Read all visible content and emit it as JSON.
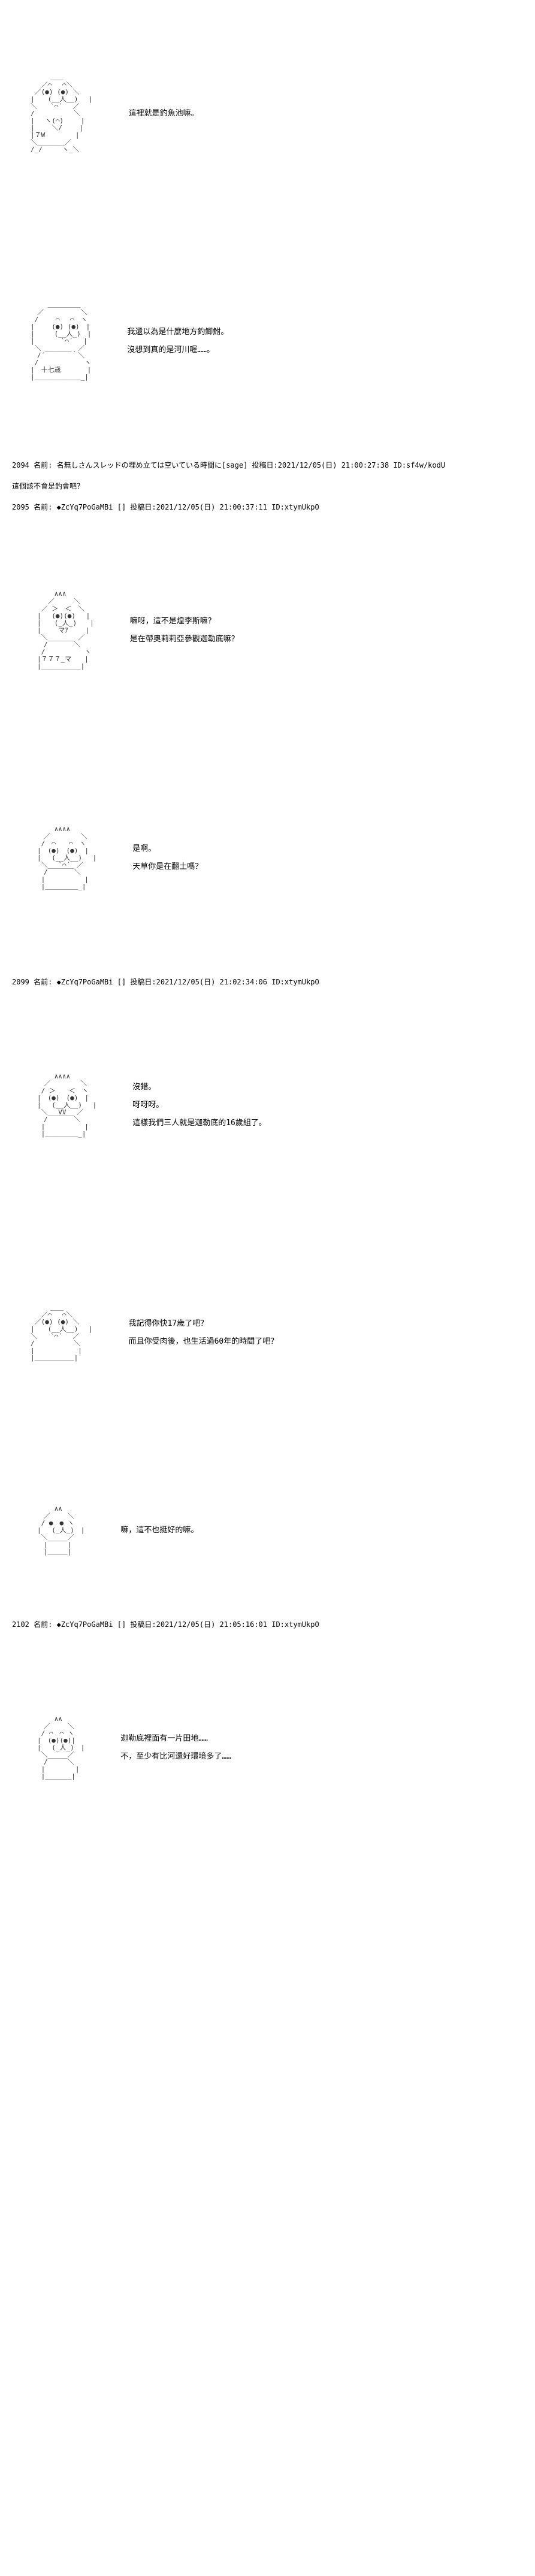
{
  "panels": [
    {
      "ascii": "　　　　＿＿\n　　 ／⌒　 ⌒＼\n　 ／(●) (●) ＼\n　|　　(__人__)　 |\n　＼　　`⌒´　 ／\n　/　　　　　　＼\n　|　 ヽ(⌒)　　 |\n　|　　 ＼/　　 |\n　|７W　　　　 |\n　＼_＿＿＿_／\n　/_/　　　ヽ_＼",
      "lines": [
        "這裡就是釣魚池嘛。"
      ],
      "height_class": ""
    },
    {
      "ascii": "　　　 ＿＿＿＿＿\n　　／　　　　　 ＼\n　 /　　 ⌒　 ⌒　ヽ\n　|　　 (●) (●)　|\n　|　　　(__人_)　|\n　|　　　　`⌒´　 |\n　 ＼　　　　　 ／\n　　/´￣￣￣￣｀＼\n　 /　　　　　　　ヽ\n　|　十七歳　　　　|\n　|＿＿＿＿＿＿＿_|",
      "lines": [
        "我還以為是什麼地方釣鯽鮒。",
        "沒想到真的是河川喔……。"
      ],
      "height_class": ""
    }
  ],
  "meta1": [
    {
      "text": "2094 名前: 名無しさんスレッドの埋め立ては空いている時間に[sage] 投稿日:2021/12/05(日) 21:00:27:38 ID:sf4w/kodU"
    },
    {
      "text": "這個該不會是釣會吧？"
    }
  ],
  "meta2": [
    {
      "text": "2095 名前: ◆ZcYq7PoGaMBi [] 投稿日:2021/12/05(日) 21:00:37:11 ID:xtymUkpO"
    }
  ],
  "panels2": [
    {
      "ascii": "　　　　 ∧∧∧\n　　　 ／　　　＼\n　　 ／ ＞　＜　＼\n　　|　 (●)(●)　 |\n　　|　　(_人_)　　|\n　　|　　 マｱ　　 |\n　　 ＼　　　　 ／\n　　　/￣￣￣￣＼\n　　 /　　　　　　ヽ\n　　|７７７_マ　　|\n　　|＿＿＿＿＿＿|",
      "lines": [
        "嘛呀，這不是煌李斯嘛？",
        "是在帶奧莉莉亞參觀迦勒底嘛？"
      ],
      "height_class": ""
    },
    {
      "ascii": "　　　　 ∧∧∧∧\n　　　／　　　　 ＼\n　　 /　⌒　　⌒　ヽ\n　　|　(●)　(●)　|\n　　|　 (__人__)　 |\n　　 ＼　 `⌒´　／\n　　　/￣￣￣￣＼\n　　 |　　　　　　|\n　　 |＿＿＿＿＿_|",
      "lines": [
        "是啊。",
        "天草你是在翻土嗎？"
      ],
      "height_class": ""
    }
  ],
  "meta3": [
    {
      "text": "2099 名前: ◆ZcYq7PoGaMBi [] 投稿日:2021/12/05(日) 21:02:34:06 ID:xtymUkpO"
    }
  ],
  "panels3": [
    {
      "ascii": "　　　　 ∧∧∧∧\n　　　／　　　　 ＼\n　　 / ＞　　＜　ヽ\n　　|　(●)　(●)　|\n　　|　 (__人__)　 |\n　　 ＼　 VV　 ／\n　　　/￣￣￣￣＼\n　　 |　　　　　　|\n　　 |＿＿＿＿＿_|",
      "lines": [
        "沒錯。",
        "呀呀呀。",
        "這樣我們三人就是迦勒底的16歲組了。"
      ],
      "height_class": ""
    },
    {
      "ascii": "　　　　＿＿\n　　 ／⌒　 ⌒＼\n　 ／(●) (●) ＼\n　|　　(__人__)　 |\n　＼　　`⌒´　 ／\n　/　　　　　　＼\n　|　　　　　　 |\n　|＿＿＿＿＿＿|",
      "lines": [
        "我記得你快17歲了吧？",
        "而且你受肉後，也生活過60年的時間了吧？"
      ],
      "height_class": ""
    },
    {
      "ascii": "　　　　 ∧∧\n　　　／　　 ＼\n　　 / ●　● ヽ\n　　|　 (_人_)　|\n　　 ＼　　　／\n　　　|￣￣￣|\n　　　|＿＿＿|",
      "lines": [
        "嘛，這不也挺好的嘛。"
      ],
      "height_class": "short"
    }
  ],
  "meta4": [
    {
      "text": "2102 名前: ◆ZcYq7PoGaMBi [] 投稿日:2021/12/05(日) 21:05:16:01 ID:xtymUkpO"
    }
  ],
  "panels4": [
    {
      "ascii": "　　　　 ∧∧\n　　　／　　 ＼\n　　 / ⌒　⌒ ヽ\n　　|　(●)(●)|\n　　|　 (_人_)　|\n　　 ＼　　　／\n　　　/￣￣￣＼\n　　 |　　　　 |\n　　 |＿＿＿＿|",
      "lines": [
        "迦勒底裡面有一片田地……",
        "不，至少有比河還好環境多了……"
      ],
      "height_class": ""
    }
  ]
}
